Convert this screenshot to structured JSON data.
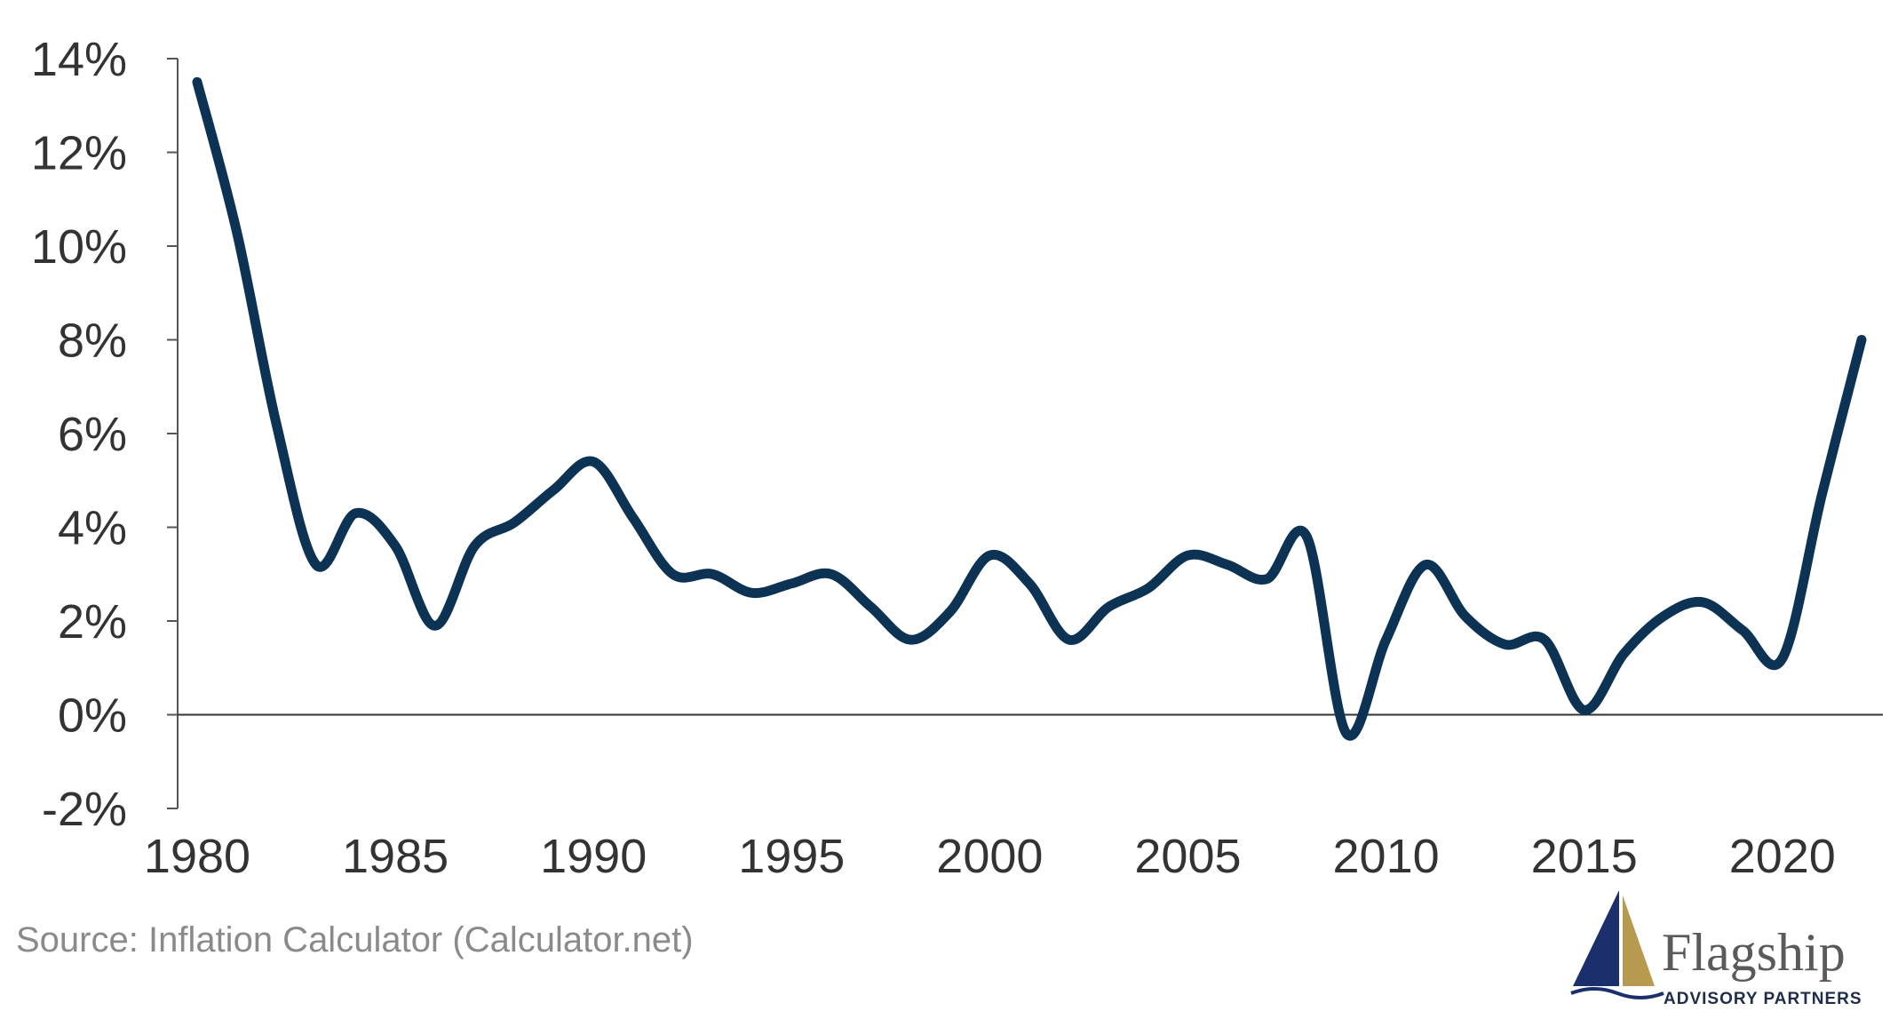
{
  "chart_data": {
    "type": "line",
    "title": "",
    "xlabel": "",
    "ylabel": "",
    "x": [
      1980,
      1981,
      1982,
      1983,
      1984,
      1985,
      1986,
      1987,
      1988,
      1989,
      1990,
      1991,
      1992,
      1993,
      1994,
      1995,
      1996,
      1997,
      1998,
      1999,
      2000,
      2001,
      2002,
      2003,
      2004,
      2005,
      2006,
      2007,
      2008,
      2009,
      2010,
      2011,
      2012,
      2013,
      2014,
      2015,
      2016,
      2017,
      2018,
      2019,
      2020,
      2021,
      2022
    ],
    "series": [
      {
        "name": "",
        "color": "#0d3354",
        "values": [
          13.5,
          10.3,
          6.2,
          3.2,
          4.3,
          3.6,
          1.9,
          3.6,
          4.1,
          4.8,
          5.4,
          4.2,
          3.0,
          3.0,
          2.6,
          2.8,
          3.0,
          2.3,
          1.6,
          2.2,
          3.4,
          2.8,
          1.6,
          2.3,
          2.7,
          3.4,
          3.2,
          2.9,
          3.8,
          -0.4,
          1.6,
          3.2,
          2.1,
          1.5,
          1.6,
          0.1,
          1.3,
          2.1,
          2.4,
          1.8,
          1.2,
          4.7,
          8.0
        ]
      }
    ],
    "xlim": [
      1980,
      2022
    ],
    "ylim": [
      -2,
      14
    ],
    "x_ticks": [
      1980,
      1985,
      1990,
      1995,
      2000,
      2005,
      2010,
      2015,
      2020
    ],
    "x_tick_labels": [
      "1980",
      "1985",
      "1990",
      "1995",
      "2000",
      "2005",
      "2010",
      "2015",
      "2020"
    ],
    "y_ticks": [
      -2,
      0,
      2,
      4,
      6,
      8,
      10,
      12,
      14
    ],
    "y_tick_labels": [
      "-2%",
      "0%",
      "2%",
      "4%",
      "6%",
      "8%",
      "10%",
      "12%",
      "14%"
    ],
    "grid": false,
    "legend": "none"
  },
  "source_text": "Source: Inflation Calculator (Calculator.net)",
  "logo": {
    "name": "Flagship",
    "tagline": "ADVISORY PARTNERS",
    "icon": "sail-icon",
    "colors": {
      "navy": "#1a2f6b",
      "gold": "#b89a4e",
      "text": "#5a5a5a"
    }
  }
}
